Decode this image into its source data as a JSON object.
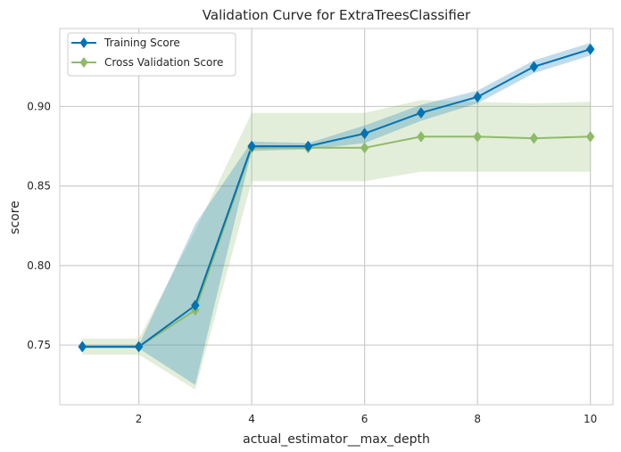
{
  "chart_data": {
    "type": "line",
    "title": "Validation Curve for ExtraTreesClassifier",
    "xlabel": "actual_estimator__max_depth",
    "ylabel": "score",
    "xlim": [
      0.6,
      10.4
    ],
    "ylim": [
      0.7125,
      0.949
    ],
    "xticks": [
      2,
      4,
      6,
      8,
      10
    ],
    "yticks": [
      0.75,
      0.8,
      0.85,
      0.9
    ],
    "ytick_labels": [
      "0.75",
      "0.80",
      "0.85",
      "0.90"
    ],
    "grid": true,
    "legend_position": "top-left",
    "x": [
      1,
      2,
      3,
      4,
      5,
      6,
      7,
      8,
      9,
      10
    ],
    "series": [
      {
        "name": "Training Score",
        "color": "#0072B2",
        "band_color": "#0072B2",
        "values": [
          0.749,
          0.749,
          0.775,
          0.875,
          0.875,
          0.883,
          0.896,
          0.906,
          0.925,
          0.936
        ],
        "lower": [
          0.748,
          0.748,
          0.725,
          0.872,
          0.873,
          0.877,
          0.891,
          0.902,
          0.921,
          0.932
        ],
        "upper": [
          0.75,
          0.75,
          0.826,
          0.878,
          0.877,
          0.888,
          0.901,
          0.91,
          0.929,
          0.94
        ]
      },
      {
        "name": "Cross Validation Score",
        "color": "#8EBA6A",
        "band_color": "#8EBA6A",
        "values": [
          0.749,
          0.749,
          0.772,
          0.874,
          0.874,
          0.874,
          0.881,
          0.881,
          0.88,
          0.881
        ],
        "lower": [
          0.744,
          0.744,
          0.722,
          0.853,
          0.853,
          0.853,
          0.859,
          0.859,
          0.859,
          0.859
        ],
        "upper": [
          0.754,
          0.754,
          0.822,
          0.896,
          0.896,
          0.896,
          0.904,
          0.903,
          0.902,
          0.903
        ]
      }
    ]
  }
}
